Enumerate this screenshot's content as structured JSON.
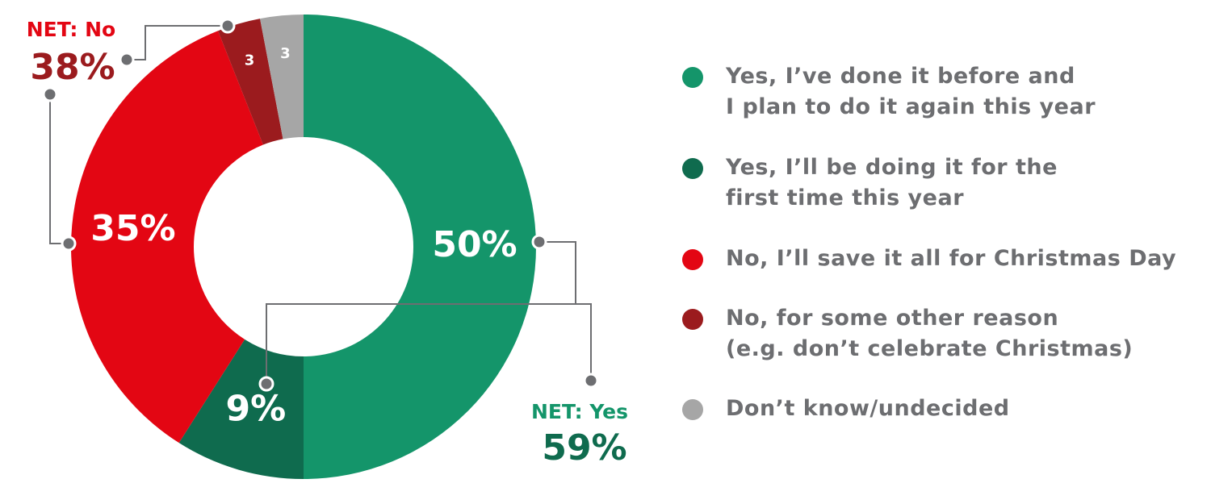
{
  "chart_data": {
    "type": "donut",
    "categories": [
      "Yes, I’ve done it before and\nI plan to do it again this year",
      "Yes, I’ll be doing it for the\nfirst time this year",
      "No, I’ll save it all for Christmas Day",
      "No, for some other reason\n(e.g. don’t celebrate Christmas)",
      "Don’t know/undecided"
    ],
    "values": [
      50,
      9,
      35,
      3,
      3
    ],
    "value_labels": [
      "50%",
      "9%",
      "35%",
      "3",
      "3"
    ],
    "colors": [
      "#14956a",
      "#0f6b4e",
      "#e30613",
      "#9b1b1e",
      "#a6a6a6"
    ],
    "net_labels": [
      {
        "name": "NET: No",
        "value": 38,
        "value_label": "38%",
        "name_color": "#e30613",
        "value_color": "#9b1b1e"
      },
      {
        "name": "NET: Yes",
        "value": 59,
        "value_label": "59%",
        "name_color": "#14956a",
        "value_color": "#0f6b4e"
      }
    ]
  }
}
